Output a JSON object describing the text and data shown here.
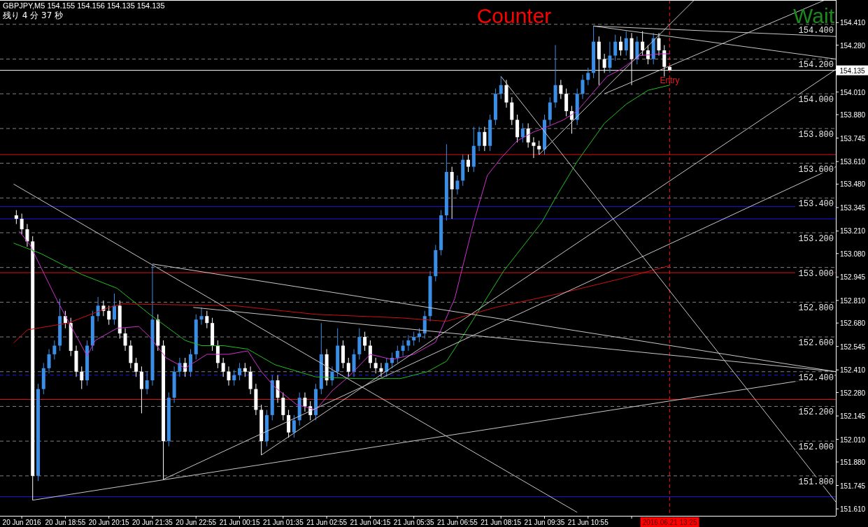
{
  "chart_data": {
    "type": "candlestick",
    "title": "GBPJPY,M5  154.155 154.156 154.135 154.135",
    "subtitle": "残り 4 分 37 秒",
    "annotations": [
      "Counter",
      "Wait",
      {
        "text": "Entry",
        "x": "2016-06-21T13:25",
        "y": 154.1
      }
    ],
    "xlim": [
      "2016-06-20T16:55",
      "2016-06-21T18:30"
    ],
    "ylim": [
      151.57,
      154.54
    ],
    "xticks": [
      {
        "value": "2016-06-20T17:35",
        "label": "20 Jun 2016"
      },
      {
        "value": "2016-06-20T18:55",
        "label": "20 Jun 18:55"
      },
      {
        "value": "2016-06-20T20:15",
        "label": "20 Jun 20:15"
      },
      {
        "value": "2016-06-20T21:35",
        "label": "20 Jun 21:35"
      },
      {
        "value": "2016-06-20T22:55",
        "label": "20 Jun 22:55"
      },
      {
        "value": "2016-06-21T00:15",
        "label": "21 Jun 00:15"
      },
      {
        "value": "2016-06-21T01:35",
        "label": "21 Jun 01:35"
      },
      {
        "value": "2016-06-21T02:55",
        "label": "21 Jun 02:55"
      },
      {
        "value": "2016-06-21T04:15",
        "label": "21 Jun 04:15"
      },
      {
        "value": "2016-06-21T05:35",
        "label": "21 Jun 05:35"
      },
      {
        "value": "2016-06-21T06:55",
        "label": "21 Jun 06:55"
      },
      {
        "value": "2016-06-21T08:15",
        "label": "21 Jun 08:15"
      },
      {
        "value": "2016-06-21T09:35",
        "label": "21 Jun 09:35"
      },
      {
        "value": "2016-06-21T10:55",
        "label": "21 Jun 10:55"
      },
      {
        "value": "2016-06-21T12:15",
        "label": null
      }
    ],
    "yticks": [
      {
        "value": 154.41,
        "label": "154.410"
      },
      {
        "value": 154.28,
        "label": "154.280"
      },
      {
        "value": 154.01,
        "label": "154.010"
      },
      {
        "value": 153.88,
        "label": "153.880"
      },
      {
        "value": 153.745,
        "label": "153.745"
      },
      {
        "value": 153.61,
        "label": "153.610"
      },
      {
        "value": 153.48,
        "label": "153.480"
      },
      {
        "value": 153.345,
        "label": "153.345"
      },
      {
        "value": 153.21,
        "label": "153.210"
      },
      {
        "value": 153.08,
        "label": "153.080"
      },
      {
        "value": 152.945,
        "label": "152.945"
      },
      {
        "value": 152.81,
        "label": "152.810"
      },
      {
        "value": 152.68,
        "label": "152.680"
      },
      {
        "value": 152.545,
        "label": "152.545"
      },
      {
        "value": 152.41,
        "label": "152.410"
      },
      {
        "value": 152.28,
        "label": "152.280"
      },
      {
        "value": 152.145,
        "label": "152.145"
      },
      {
        "value": 152.01,
        "label": "152.010"
      },
      {
        "value": 151.88,
        "label": "151.880"
      },
      {
        "value": 151.745,
        "label": "151.745"
      },
      {
        "value": 151.61,
        "label": "151.610"
      }
    ],
    "x": [
      "2016-06-20T17:25",
      "2016-06-20T17:35",
      "2016-06-20T17:45",
      "2016-06-20T17:55",
      "2016-06-20T18:05",
      "2016-06-20T18:15",
      "2016-06-20T18:25",
      "2016-06-20T18:35",
      "2016-06-20T18:45",
      "2016-06-20T18:55",
      "2016-06-20T19:05",
      "2016-06-20T19:15",
      "2016-06-20T19:25",
      "2016-06-20T19:35",
      "2016-06-20T19:45",
      "2016-06-20T19:55",
      "2016-06-20T20:05",
      "2016-06-20T20:15",
      "2016-06-20T20:25",
      "2016-06-20T20:35",
      "2016-06-20T20:45",
      "2016-06-20T20:55",
      "2016-06-20T21:05",
      "2016-06-20T21:15",
      "2016-06-20T21:25",
      "2016-06-20T21:35",
      "2016-06-20T21:45",
      "2016-06-20T21:55",
      "2016-06-20T22:05",
      "2016-06-20T22:15",
      "2016-06-20T22:25",
      "2016-06-20T22:35",
      "2016-06-20T22:45",
      "2016-06-20T22:55",
      "2016-06-20T23:05",
      "2016-06-20T23:15",
      "2016-06-20T23:25",
      "2016-06-20T23:35",
      "2016-06-20T23:45",
      "2016-06-20T23:55",
      "2016-06-21T00:05",
      "2016-06-21T00:15",
      "2016-06-21T00:25",
      "2016-06-21T00:35",
      "2016-06-21T00:45",
      "2016-06-21T00:55",
      "2016-06-21T01:05",
      "2016-06-21T01:15",
      "2016-06-21T01:25",
      "2016-06-21T01:35",
      "2016-06-21T01:45",
      "2016-06-21T01:55",
      "2016-06-21T02:05",
      "2016-06-21T02:15",
      "2016-06-21T02:25",
      "2016-06-21T02:35",
      "2016-06-21T02:45",
      "2016-06-21T02:55",
      "2016-06-21T03:05",
      "2016-06-21T03:15",
      "2016-06-21T03:25",
      "2016-06-21T03:35",
      "2016-06-21T03:45",
      "2016-06-21T03:55",
      "2016-06-21T04:05",
      "2016-06-21T04:15",
      "2016-06-21T04:25",
      "2016-06-21T04:35",
      "2016-06-21T04:45",
      "2016-06-21T04:55",
      "2016-06-21T05:05",
      "2016-06-21T05:15",
      "2016-06-21T05:25",
      "2016-06-21T05:35",
      "2016-06-21T05:45",
      "2016-06-21T05:55",
      "2016-06-21T06:05",
      "2016-06-21T06:15",
      "2016-06-21T06:25",
      "2016-06-21T06:35",
      "2016-06-21T06:45",
      "2016-06-21T06:55",
      "2016-06-21T07:05",
      "2016-06-21T07:15",
      "2016-06-21T07:25",
      "2016-06-21T07:35",
      "2016-06-21T07:45",
      "2016-06-21T07:55",
      "2016-06-21T08:05",
      "2016-06-21T08:15",
      "2016-06-21T08:25",
      "2016-06-21T08:35",
      "2016-06-21T08:45",
      "2016-06-21T08:55",
      "2016-06-21T09:05",
      "2016-06-21T09:15",
      "2016-06-21T09:25",
      "2016-06-21T09:35",
      "2016-06-21T09:45",
      "2016-06-21T09:55",
      "2016-06-21T10:05",
      "2016-06-21T10:15",
      "2016-06-21T10:25",
      "2016-06-21T10:35",
      "2016-06-21T10:45",
      "2016-06-21T10:55",
      "2016-06-21T11:05",
      "2016-06-21T11:15",
      "2016-06-21T11:25",
      "2016-06-21T11:35",
      "2016-06-21T11:45",
      "2016-06-21T11:55",
      "2016-06-21T12:05",
      "2016-06-21T12:15",
      "2016-06-21T12:25",
      "2016-06-21T12:35",
      "2016-06-21T12:45",
      "2016-06-21T12:55",
      "2016-06-21T13:05",
      "2016-06-21T13:15",
      "2016-06-21T13:25"
    ],
    "ohlc": [
      [
        153.3,
        153.33,
        153.25,
        153.28
      ],
      [
        153.28,
        153.31,
        153.19,
        153.22
      ],
      [
        153.22,
        153.25,
        153.12,
        153.15
      ],
      [
        153.15,
        153.18,
        151.66,
        151.8
      ],
      [
        151.8,
        152.33,
        151.77,
        152.3
      ],
      [
        152.3,
        152.45,
        152.27,
        152.42
      ],
      [
        152.42,
        152.53,
        152.39,
        152.5
      ],
      [
        152.5,
        152.58,
        152.47,
        152.55
      ],
      [
        152.55,
        152.82,
        152.52,
        152.72
      ],
      [
        152.72,
        152.75,
        152.65,
        152.68
      ],
      [
        152.68,
        152.71,
        152.49,
        152.52
      ],
      [
        152.52,
        152.55,
        152.37,
        152.4
      ],
      [
        152.4,
        152.43,
        152.3,
        152.35
      ],
      [
        152.35,
        152.58,
        152.32,
        152.55
      ],
      [
        152.55,
        152.75,
        152.52,
        152.72
      ],
      [
        152.72,
        152.83,
        152.69,
        152.78
      ],
      [
        152.78,
        152.81,
        152.72,
        152.75
      ],
      [
        152.75,
        152.78,
        152.67,
        152.7
      ],
      [
        152.7,
        152.85,
        152.67,
        152.78
      ],
      [
        152.78,
        152.81,
        152.59,
        152.62
      ],
      [
        152.62,
        152.65,
        152.52,
        152.55
      ],
      [
        152.55,
        152.58,
        152.42,
        152.45
      ],
      [
        152.45,
        152.48,
        152.37,
        152.4
      ],
      [
        152.4,
        152.43,
        152.16,
        152.3
      ],
      [
        152.3,
        152.4,
        152.27,
        152.35
      ],
      [
        152.35,
        153.015,
        152.32,
        152.7
      ],
      [
        152.7,
        152.73,
        152.52,
        152.55
      ],
      [
        152.55,
        152.58,
        151.78,
        152.0
      ],
      [
        152.0,
        152.28,
        151.97,
        152.25
      ],
      [
        152.25,
        152.43,
        152.22,
        152.4
      ],
      [
        152.4,
        152.48,
        152.37,
        152.45
      ],
      [
        152.45,
        152.48,
        152.37,
        152.4
      ],
      [
        152.4,
        152.53,
        152.37,
        152.5
      ],
      [
        152.5,
        152.73,
        152.47,
        152.7
      ],
      [
        152.7,
        152.77,
        152.67,
        152.72
      ],
      [
        152.72,
        152.75,
        152.65,
        152.68
      ],
      [
        152.68,
        152.71,
        152.52,
        152.55
      ],
      [
        152.55,
        152.58,
        152.42,
        152.45
      ],
      [
        152.45,
        152.48,
        152.37,
        152.4
      ],
      [
        152.4,
        152.43,
        152.32,
        152.35
      ],
      [
        152.35,
        152.41,
        152.32,
        152.38
      ],
      [
        152.38,
        152.45,
        152.35,
        152.42
      ],
      [
        152.42,
        152.45,
        152.37,
        152.4
      ],
      [
        152.4,
        152.43,
        152.27,
        152.3
      ],
      [
        152.3,
        152.33,
        152.15,
        152.18
      ],
      [
        152.18,
        152.21,
        151.92,
        152.0
      ],
      [
        152.0,
        152.18,
        151.97,
        152.15
      ],
      [
        152.15,
        152.38,
        152.12,
        152.35
      ],
      [
        152.35,
        152.38,
        152.22,
        152.25
      ],
      [
        152.25,
        152.28,
        152.12,
        152.15
      ],
      [
        152.15,
        152.18,
        152.02,
        152.05
      ],
      [
        152.05,
        152.15,
        152.02,
        152.12
      ],
      [
        152.12,
        152.28,
        152.09,
        152.25
      ],
      [
        152.25,
        152.28,
        152.17,
        152.2
      ],
      [
        152.2,
        152.23,
        152.12,
        152.15
      ],
      [
        152.15,
        152.33,
        152.12,
        152.3
      ],
      [
        152.3,
        152.68,
        152.27,
        152.5
      ],
      [
        152.5,
        152.53,
        152.32,
        152.35
      ],
      [
        152.35,
        152.43,
        152.32,
        152.4
      ],
      [
        152.4,
        152.65,
        152.37,
        152.55
      ],
      [
        152.55,
        152.58,
        152.42,
        152.45
      ],
      [
        152.45,
        152.48,
        152.37,
        152.4
      ],
      [
        152.4,
        152.53,
        152.37,
        152.5
      ],
      [
        152.5,
        152.65,
        152.47,
        152.6
      ],
      [
        152.6,
        152.63,
        152.52,
        152.55
      ],
      [
        152.55,
        152.58,
        152.42,
        152.45
      ],
      [
        152.45,
        152.48,
        152.39,
        152.42
      ],
      [
        152.42,
        152.45,
        152.37,
        152.4
      ],
      [
        152.4,
        152.48,
        152.37,
        152.45
      ],
      [
        152.45,
        152.51,
        152.42,
        152.48
      ],
      [
        152.48,
        152.55,
        152.45,
        152.52
      ],
      [
        152.52,
        152.58,
        152.49,
        152.55
      ],
      [
        152.55,
        152.61,
        152.52,
        152.58
      ],
      [
        152.58,
        152.63,
        152.55,
        152.6
      ],
      [
        152.6,
        152.65,
        152.57,
        152.62
      ],
      [
        152.62,
        152.75,
        152.59,
        152.72
      ],
      [
        152.72,
        152.98,
        152.69,
        152.95
      ],
      [
        152.95,
        153.13,
        152.92,
        153.1
      ],
      [
        153.1,
        153.33,
        153.07,
        153.3
      ],
      [
        153.3,
        153.71,
        153.27,
        153.55
      ],
      [
        153.55,
        153.58,
        153.28,
        153.45
      ],
      [
        153.45,
        153.53,
        153.42,
        153.5
      ],
      [
        153.5,
        153.65,
        153.47,
        153.62
      ],
      [
        153.62,
        153.65,
        153.55,
        153.58
      ],
      [
        153.58,
        153.81,
        153.55,
        153.7
      ],
      [
        153.7,
        153.81,
        153.67,
        153.78
      ],
      [
        153.78,
        153.81,
        153.67,
        153.7
      ],
      [
        153.7,
        153.88,
        153.67,
        153.85
      ],
      [
        153.85,
        154.03,
        153.82,
        154.0
      ],
      [
        154.0,
        154.1,
        153.97,
        154.05
      ],
      [
        154.05,
        154.08,
        153.92,
        153.95
      ],
      [
        153.95,
        153.98,
        153.82,
        153.85
      ],
      [
        153.85,
        153.88,
        153.72,
        153.75
      ],
      [
        153.75,
        153.83,
        153.72,
        153.8
      ],
      [
        153.8,
        153.83,
        153.69,
        153.72
      ],
      [
        153.72,
        153.75,
        153.63,
        153.7
      ],
      [
        153.7,
        153.73,
        153.65,
        153.68
      ],
      [
        153.68,
        153.88,
        153.65,
        153.85
      ],
      [
        153.85,
        153.98,
        153.82,
        153.95
      ],
      [
        153.95,
        154.28,
        153.92,
        154.05
      ],
      [
        154.05,
        154.08,
        153.97,
        154.0
      ],
      [
        154.0,
        154.03,
        153.87,
        153.9
      ],
      [
        153.9,
        153.93,
        153.77,
        153.85
      ],
      [
        153.85,
        154.03,
        153.82,
        154.0
      ],
      [
        154.0,
        154.11,
        153.97,
        154.08
      ],
      [
        154.08,
        154.15,
        154.05,
        154.12
      ],
      [
        154.12,
        154.39,
        154.09,
        154.3
      ],
      [
        154.3,
        154.33,
        154.05,
        154.2
      ],
      [
        154.2,
        154.23,
        154.12,
        154.15
      ],
      [
        154.15,
        154.3,
        154.12,
        154.22
      ],
      [
        154.22,
        154.34,
        154.19,
        154.3
      ],
      [
        154.3,
        154.33,
        154.22,
        154.25
      ],
      [
        154.25,
        154.36,
        154.22,
        154.32
      ],
      [
        154.32,
        154.35,
        154.05,
        154.2
      ],
      [
        154.2,
        154.33,
        154.17,
        154.3
      ],
      [
        154.3,
        154.36,
        154.22,
        154.25
      ],
      [
        154.25,
        154.28,
        154.17,
        154.2
      ],
      [
        154.2,
        154.35,
        154.17,
        154.32
      ],
      [
        154.32,
        154.35,
        154.22,
        154.25
      ],
      [
        154.25,
        154.28,
        154.1,
        154.155
      ],
      [
        154.155,
        154.156,
        154.135,
        154.135
      ]
    ],
    "colors": [
      "#ffffff",
      "#ffffff",
      "#ffffff",
      "#ffffff",
      "#3a8ee6",
      "#3a8ee6",
      "#3a8ee6",
      "#3a8ee6",
      "#3a8ee6",
      "#ffffff",
      "#ffffff",
      "#ffffff",
      "#ffffff",
      "#3a8ee6",
      "#3a8ee6",
      "#3a8ee6",
      "#ffffff",
      "#ffffff",
      "#3a8ee6",
      "#ffffff",
      "#ffffff",
      "#ffffff",
      "#ffffff",
      "#ffffff",
      "#3a8ee6",
      "#3a8ee6",
      "#ffffff",
      "#ffffff",
      "#3a8ee6",
      "#3a8ee6",
      "#3a8ee6",
      "#ffffff",
      "#3a8ee6",
      "#3a8ee6",
      "#3a8ee6",
      "#ffffff",
      "#ffffff",
      "#ffffff",
      "#ffffff",
      "#ffffff",
      "#3a8ee6",
      "#3a8ee6",
      "#ffffff",
      "#ffffff",
      "#ffffff",
      "#ffffff",
      "#3a8ee6",
      "#3a8ee6",
      "#ffffff",
      "#ffffff",
      "#ffffff",
      "#3a8ee6",
      "#3a8ee6",
      "#ffffff",
      "#ffffff",
      "#3a8ee6",
      "#3a8ee6",
      "#ffffff",
      "#3a8ee6",
      "#3a8ee6",
      "#ffffff",
      "#ffffff",
      "#3a8ee6",
      "#3a8ee6",
      "#ffffff",
      "#ffffff",
      "#ffffff",
      "#ffffff",
      "#3a8ee6",
      "#3a8ee6",
      "#3a8ee6",
      "#3a8ee6",
      "#3a8ee6",
      "#3a8ee6",
      "#3a8ee6",
      "#3a8ee6",
      "#3a8ee6",
      "#3a8ee6",
      "#3a8ee6",
      "#3a8ee6",
      "#ffffff",
      "#3a8ee6",
      "#3a8ee6",
      "#ffffff",
      "#3a8ee6",
      "#3a8ee6",
      "#ffffff",
      "#3a8ee6",
      "#3a8ee6",
      "#3a8ee6",
      "#ffffff",
      "#ffffff",
      "#ffffff",
      "#3a8ee6",
      "#ffffff",
      "#ffffff",
      "#ffffff",
      "#3a8ee6",
      "#3a8ee6",
      "#3a8ee6",
      "#ffffff",
      "#ffffff",
      "#ffffff",
      "#3a8ee6",
      "#3a8ee6",
      "#3a8ee6",
      "#3a8ee6",
      "#ffffff",
      "#ffffff",
      "#3a8ee6",
      "#3a8ee6",
      "#ffffff",
      "#3a8ee6",
      "#ffffff",
      "#3a8ee6",
      "#ffffff",
      "#ffffff",
      "#3a8ee6",
      "#ffffff",
      "#ffffff",
      "#ffffff"
    ],
    "series": [
      {
        "type": "line",
        "color": "#d030d0",
        "x": [
          "2016-06-20T17:30",
          "2016-06-20T17:50",
          "2016-06-20T18:40",
          "2016-06-20T19:35",
          "2016-06-20T19:50",
          "2016-06-20T20:30",
          "2016-06-20T21:10",
          "2016-06-20T21:30",
          "2016-06-20T22:00",
          "2016-06-20T22:35",
          "2016-06-20T23:15",
          "2016-06-20T23:55",
          "2016-06-21T00:30",
          "2016-06-21T00:55",
          "2016-06-21T01:20",
          "2016-06-21T02:00",
          "2016-06-21T02:35",
          "2016-06-21T03:05",
          "2016-06-21T03:35",
          "2016-06-21T04:15",
          "2016-06-21T04:55",
          "2016-06-21T05:35",
          "2016-06-21T06:15",
          "2016-06-21T06:50",
          "2016-06-21T07:25",
          "2016-06-21T07:50",
          "2016-06-21T08:15",
          "2016-06-21T08:45",
          "2016-06-21T09:15",
          "2016-06-21T09:40",
          "2016-06-21T10:10",
          "2016-06-21T10:35",
          "2016-06-21T11:05",
          "2016-06-21T11:30",
          "2016-06-21T11:55",
          "2016-06-21T12:30",
          "2016-06-21T13:10",
          "2016-06-21T13:25"
        ],
        "values": [
          153.21,
          153.13,
          152.81,
          152.49,
          152.58,
          152.65,
          152.66,
          152.6,
          152.48,
          152.42,
          152.5,
          152.5,
          152.52,
          152.4,
          152.31,
          152.21,
          152.18,
          152.29,
          152.37,
          152.5,
          152.47,
          152.5,
          152.57,
          152.82,
          153.26,
          153.53,
          153.63,
          153.73,
          153.78,
          153.81,
          153.85,
          153.9,
          154.01,
          154.1,
          154.14,
          154.22,
          154.23,
          154.23
        ]
      },
      {
        "type": "line",
        "color": "#20c020",
        "x": [
          "2016-06-20T17:20",
          "2016-06-20T18:10",
          "2016-06-20T19:25",
          "2016-06-20T20:30",
          "2016-06-20T21:30",
          "2016-06-20T22:35",
          "2016-06-20T23:05",
          "2016-06-20T23:45",
          "2016-06-21T00:30",
          "2016-06-21T01:20",
          "2016-06-21T02:35",
          "2016-06-21T03:50",
          "2016-06-21T05:10",
          "2016-06-21T06:00",
          "2016-06-21T06:35",
          "2016-06-21T07:00",
          "2016-06-21T07:40",
          "2016-06-21T08:20",
          "2016-06-21T09:00",
          "2016-06-21T09:30",
          "2016-06-21T09:55",
          "2016-06-21T10:35",
          "2016-06-21T11:25",
          "2016-06-21T12:05",
          "2016-06-21T12:45",
          "2016-06-21T13:25"
        ],
        "values": [
          153.14,
          153.08,
          152.96,
          152.88,
          152.73,
          152.58,
          152.55,
          152.55,
          152.53,
          152.44,
          152.37,
          152.36,
          152.36,
          152.4,
          152.46,
          152.58,
          152.78,
          152.98,
          153.14,
          153.26,
          153.4,
          153.61,
          153.83,
          153.94,
          154.02,
          154.05
        ]
      },
      {
        "type": "line",
        "color": "#d01010",
        "x": [
          "2016-06-20T17:20",
          "2016-06-20T17:45",
          "2016-06-20T19:00",
          "2016-06-20T20:15",
          "2016-06-20T20:40",
          "2016-06-21T00:05",
          "2016-06-21T02:35",
          "2016-06-21T05:10",
          "2016-06-21T06:35",
          "2016-06-21T08:05",
          "2016-06-21T10:10",
          "2016-06-21T11:55",
          "2016-06-21T13:25"
        ],
        "values": [
          152.565,
          152.64,
          152.68,
          152.77,
          152.79,
          152.78,
          152.73,
          152.71,
          152.69,
          152.77,
          152.855,
          152.935,
          153.01
        ]
      },
      {
        "type": "line",
        "color": "#c8c8c8",
        "x": [
          "2016-06-20T17:20",
          "2016-06-21T10:35"
        ],
        "values": [
          153.48,
          151.59
        ]
      },
      {
        "type": "line",
        "color": "#c8c8c8",
        "x": [
          "2016-06-20T21:35",
          "2016-06-21T18:30"
        ],
        "values": [
          153.02,
          152.4
        ]
      },
      {
        "type": "line",
        "color": "#c8c8c8",
        "x": [
          "2016-06-20T22:50",
          "2016-06-21T18:30"
        ],
        "values": [
          152.77,
          152.4
        ]
      },
      {
        "type": "line",
        "color": "#c8c8c8",
        "x": [
          "2016-06-20T17:55",
          "2016-06-21T18:30"
        ],
        "values": [
          151.66,
          152.38
        ]
      },
      {
        "type": "line",
        "color": "#c8c8c8",
        "x": [
          "2016-06-20T21:55",
          "2016-06-21T18:30"
        ],
        "values": [
          151.78,
          153.58
        ]
      },
      {
        "type": "line",
        "color": "#c8c8c8",
        "x": [
          "2016-06-21T00:55",
          "2016-06-21T18:30"
        ],
        "values": [
          151.92,
          154.14
        ]
      },
      {
        "type": "line",
        "color": "#c8c8c8",
        "x": [
          "2016-06-21T08:15",
          "2016-06-21T18:30"
        ],
        "values": [
          154.1,
          151.65
        ]
      },
      {
        "type": "line",
        "color": "#c8c8c8",
        "x": [
          "2016-06-21T11:05",
          "2016-06-21T18:30"
        ],
        "values": [
          154.39,
          154.33
        ]
      },
      {
        "type": "line",
        "color": "#c8c8c8",
        "x": [
          "2016-06-21T11:05",
          "2016-06-21T18:30"
        ],
        "values": [
          154.39,
          154.2
        ]
      },
      {
        "type": "line",
        "color": "#c8c8c8",
        "x": [
          "2016-06-21T09:25",
          "2016-06-21T14:10"
        ],
        "values": [
          153.65,
          154.54
        ]
      },
      {
        "type": "line",
        "color": "#c8c8c8",
        "x": [
          "2016-06-21T11:25",
          "2016-06-21T18:10"
        ],
        "values": [
          154.0,
          154.54
        ]
      }
    ],
    "ref_lines": [
      {
        "axis": "y",
        "value": 154.4,
        "label": "154.400",
        "color": "#808080",
        "line_style": "dashed"
      },
      {
        "axis": "y",
        "value": 154.2,
        "label": "154.200",
        "color": "#808080",
        "line_style": "dashed"
      },
      {
        "axis": "y",
        "value": 154.0,
        "label": "154.000",
        "color": "#808080",
        "line_style": "dashed"
      },
      {
        "axis": "y",
        "value": 153.8,
        "label": "153.800",
        "color": "#808080",
        "line_style": "dashed"
      },
      {
        "axis": "y",
        "value": 153.6,
        "label": "153.600",
        "color": "#808080",
        "line_style": "dashed"
      },
      {
        "axis": "y",
        "value": 153.4,
        "label": "153.400",
        "color": "#808080",
        "line_style": "dashed"
      },
      {
        "axis": "y",
        "value": 153.2,
        "label": "153.200",
        "color": "#808080",
        "line_style": "dashed"
      },
      {
        "axis": "y",
        "value": 153.0,
        "label": "153.000",
        "color": "#808080",
        "line_style": "dashed"
      },
      {
        "axis": "y",
        "value": 152.8,
        "label": "152.800",
        "color": "#808080",
        "line_style": "dashed"
      },
      {
        "axis": "y",
        "value": 152.6,
        "label": "152.600",
        "color": "#808080",
        "line_style": "dashed"
      },
      {
        "axis": "y",
        "value": 152.4,
        "label": "152.400",
        "color": "#808080",
        "line_style": "dashed"
      },
      {
        "axis": "y",
        "value": 152.2,
        "label": "152.200",
        "color": "#808080",
        "line_style": "dashed"
      },
      {
        "axis": "y",
        "value": 152.0,
        "label": "152.000",
        "color": "#808080",
        "line_style": "dashed"
      },
      {
        "axis": "y",
        "value": 151.8,
        "label": "151.800",
        "color": "#808080",
        "line_style": "dashed"
      },
      {
        "axis": "y",
        "value": 153.65,
        "color": "#e01010",
        "line_style": "solid"
      },
      {
        "axis": "y",
        "value": 152.97,
        "color": "#e01010",
        "line_style": "solid"
      },
      {
        "axis": "y",
        "value": 152.24,
        "color": "#e01010",
        "line_style": "solid"
      },
      {
        "axis": "y",
        "value": 153.35,
        "color": "#1a1ae0",
        "line_style": "solid"
      },
      {
        "axis": "y",
        "value": 153.28,
        "color": "#1a1ae0",
        "line_style": "solid"
      },
      {
        "axis": "y",
        "value": 151.68,
        "color": "#1a1ae0",
        "line_style": "solid"
      },
      {
        "axis": "y",
        "value": 152.38,
        "color": "#1a1ae0",
        "line_style": "dashed"
      },
      {
        "axis": "y",
        "value": 154.135,
        "label": "154.135",
        "color": "#ffffff",
        "line_style": "solid"
      },
      {
        "axis": "x",
        "value": "2016-06-21T13:25",
        "label": "2016.06.21 13:25",
        "color": "#ff0000",
        "line_style": "dashed"
      }
    ]
  }
}
